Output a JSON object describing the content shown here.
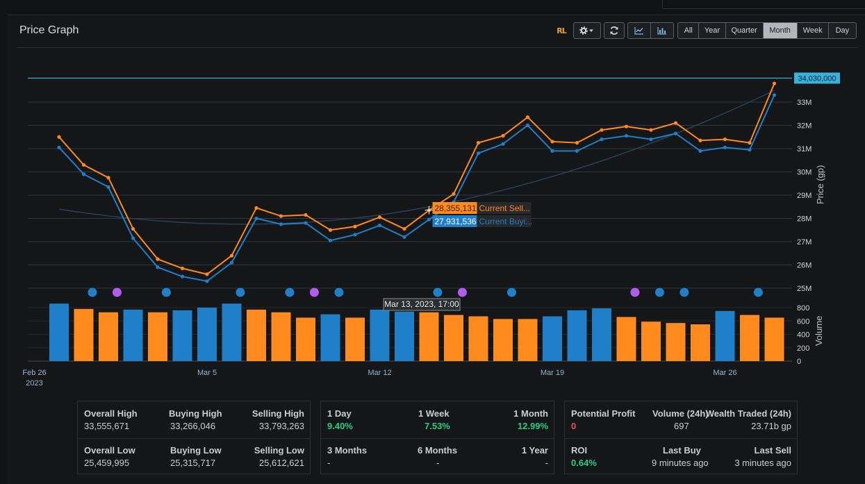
{
  "panel": {
    "title": "Price Graph"
  },
  "toolbar": {
    "logo_text": "RL",
    "settings_icon": "gear-icon",
    "refresh_icon": "refresh-icon",
    "line_chart_icon": "line-chart-icon",
    "bar_chart_icon": "bar-chart-icon",
    "ranges": [
      "All",
      "Year",
      "Quarter",
      "Month",
      "Week",
      "Day"
    ],
    "active_range": "Month"
  },
  "colors": {
    "sell": "#ff8a1e",
    "buy": "#1f7fc8",
    "event_blue": "#1f7fc8",
    "event_purple": "#b15cf0",
    "ref_line": "#3ab0dc",
    "trend": "#27415a"
  },
  "chart_data": {
    "type": "line",
    "ylabel": "Price (gp)",
    "y2label": "Volume",
    "ylim": [
      25000000,
      34000000
    ],
    "y_ticks": [
      "25M",
      "26M",
      "27M",
      "28M",
      "29M",
      "30M",
      "31M",
      "32M",
      "33M"
    ],
    "vol_ylim": [
      0,
      800
    ],
    "vol_ticks": [
      "0",
      "200",
      "400",
      "600",
      "800"
    ],
    "x_ticks": [
      {
        "label": "Feb 26",
        "sub": "2023",
        "day": 0
      },
      {
        "label": "Mar 5",
        "sub": "",
        "day": 7
      },
      {
        "label": "Mar 12",
        "sub": "",
        "day": 14
      },
      {
        "label": "Mar 19",
        "sub": "",
        "day": 21
      },
      {
        "label": "Mar 26",
        "sub": "",
        "day": 28
      }
    ],
    "reference_line": {
      "value": 34030000,
      "label": "34,030,000"
    },
    "series": [
      {
        "name": "Current Sell...",
        "color_key": "sell",
        "x": [
          1,
          2,
          3,
          4,
          5,
          6,
          7,
          8,
          9,
          10,
          11,
          12,
          13,
          14,
          15,
          16,
          17,
          18,
          19,
          20,
          21,
          22,
          23,
          24,
          25,
          26,
          27,
          28,
          29,
          30
        ],
        "values": [
          31500000,
          30300000,
          29750000,
          27550000,
          26250000,
          25850000,
          25600000,
          26400000,
          28450000,
          28100000,
          28150000,
          27500000,
          27650000,
          28050000,
          27550000,
          28350000,
          29050000,
          31250000,
          31550000,
          32350000,
          31300000,
          31250000,
          31800000,
          31950000,
          31800000,
          32100000,
          31350000,
          31400000,
          31250000,
          33800000
        ]
      },
      {
        "name": "Current Buyi...",
        "color_key": "buy",
        "x": [
          1,
          2,
          3,
          4,
          5,
          6,
          7,
          8,
          9,
          10,
          11,
          12,
          13,
          14,
          15,
          16,
          17,
          18,
          19,
          20,
          21,
          22,
          23,
          24,
          25,
          26,
          27,
          28,
          29,
          30
        ],
        "values": [
          31050000,
          29900000,
          29350000,
          27150000,
          25900000,
          25500000,
          25300000,
          26100000,
          28000000,
          27750000,
          27800000,
          27050000,
          27300000,
          27700000,
          27200000,
          27950000,
          28700000,
          30800000,
          31200000,
          32000000,
          30900000,
          30900000,
          31400000,
          31550000,
          31400000,
          31650000,
          30900000,
          31050000,
          30950000,
          33300000
        ]
      }
    ],
    "trendline": {
      "x": [
        1,
        30
      ],
      "values": [
        28400000,
        33500000
      ]
    },
    "volume": {
      "x": [
        1,
        2,
        3,
        4,
        5,
        6,
        7,
        8,
        9,
        10,
        11,
        12,
        13,
        14,
        15,
        16,
        17,
        18,
        19,
        20,
        21,
        22,
        23,
        24,
        25,
        26,
        27,
        28,
        29,
        30
      ],
      "values": [
        860,
        780,
        730,
        770,
        730,
        760,
        800,
        860,
        770,
        730,
        650,
        700,
        650,
        770,
        740,
        730,
        690,
        670,
        630,
        630,
        670,
        760,
        790,
        660,
        590,
        570,
        550,
        750,
        690,
        650
      ],
      "types": [
        "buy",
        "sell",
        "sell",
        "buy",
        "sell",
        "buy",
        "buy",
        "buy",
        "sell",
        "sell",
        "sell",
        "buy",
        "sell",
        "buy",
        "buy",
        "sell",
        "sell",
        "sell",
        "sell",
        "sell",
        "buy",
        "buy",
        "buy",
        "sell",
        "sell",
        "sell",
        "sell",
        "buy",
        "sell",
        "sell"
      ]
    },
    "events": [
      {
        "x": 2.35,
        "type": "blue"
      },
      {
        "x": 3.35,
        "type": "purple"
      },
      {
        "x": 5.35,
        "type": "blue"
      },
      {
        "x": 8.35,
        "type": "blue"
      },
      {
        "x": 10.35,
        "type": "blue"
      },
      {
        "x": 11.35,
        "type": "purple"
      },
      {
        "x": 12.35,
        "type": "blue"
      },
      {
        "x": 16.35,
        "type": "blue"
      },
      {
        "x": 17.35,
        "type": "purple"
      },
      {
        "x": 19.35,
        "type": "blue"
      },
      {
        "x": 24.35,
        "type": "purple"
      },
      {
        "x": 25.35,
        "type": "blue"
      },
      {
        "x": 26.35,
        "type": "blue"
      },
      {
        "x": 29.35,
        "type": "blue"
      }
    ],
    "tooltip": {
      "x": 16,
      "sell_value": "28,355,131",
      "sell_label": "Current Sell...",
      "buy_value": "27,931,536",
      "buy_label": "Current Buyi...",
      "date": "Mar 13, 2023, 17:00"
    }
  },
  "stats": {
    "group1": [
      {
        "label": "Overall High",
        "value": "33,555,671"
      },
      {
        "label": "Buying High",
        "value": "33,266,046"
      },
      {
        "label": "Selling High",
        "value": "33,793,263"
      },
      {
        "label": "Overall Low",
        "value": "25,459,995"
      },
      {
        "label": "Buying Low",
        "value": "25,315,717"
      },
      {
        "label": "Selling Low",
        "value": "25,612,621"
      }
    ],
    "group2": [
      {
        "label": "1 Day",
        "value": "9.40%"
      },
      {
        "label": "1 Week",
        "value": "7.53%"
      },
      {
        "label": "1 Month",
        "value": "12.99%"
      },
      {
        "label": "3 Months",
        "value": "-"
      },
      {
        "label": "6 Months",
        "value": "-"
      },
      {
        "label": "1 Year",
        "value": "-"
      }
    ],
    "group3": [
      {
        "label": "Potential Profit",
        "value": "0"
      },
      {
        "label": "Volume (24h)",
        "value": "697"
      },
      {
        "label": "Wealth Traded (24h)",
        "value": "23.71b gp"
      },
      {
        "label": "ROI",
        "value": "0.64%"
      },
      {
        "label": "Last Buy",
        "value": "9 minutes ago"
      },
      {
        "label": "Last Sell",
        "value": "3 minutes ago"
      }
    ]
  }
}
